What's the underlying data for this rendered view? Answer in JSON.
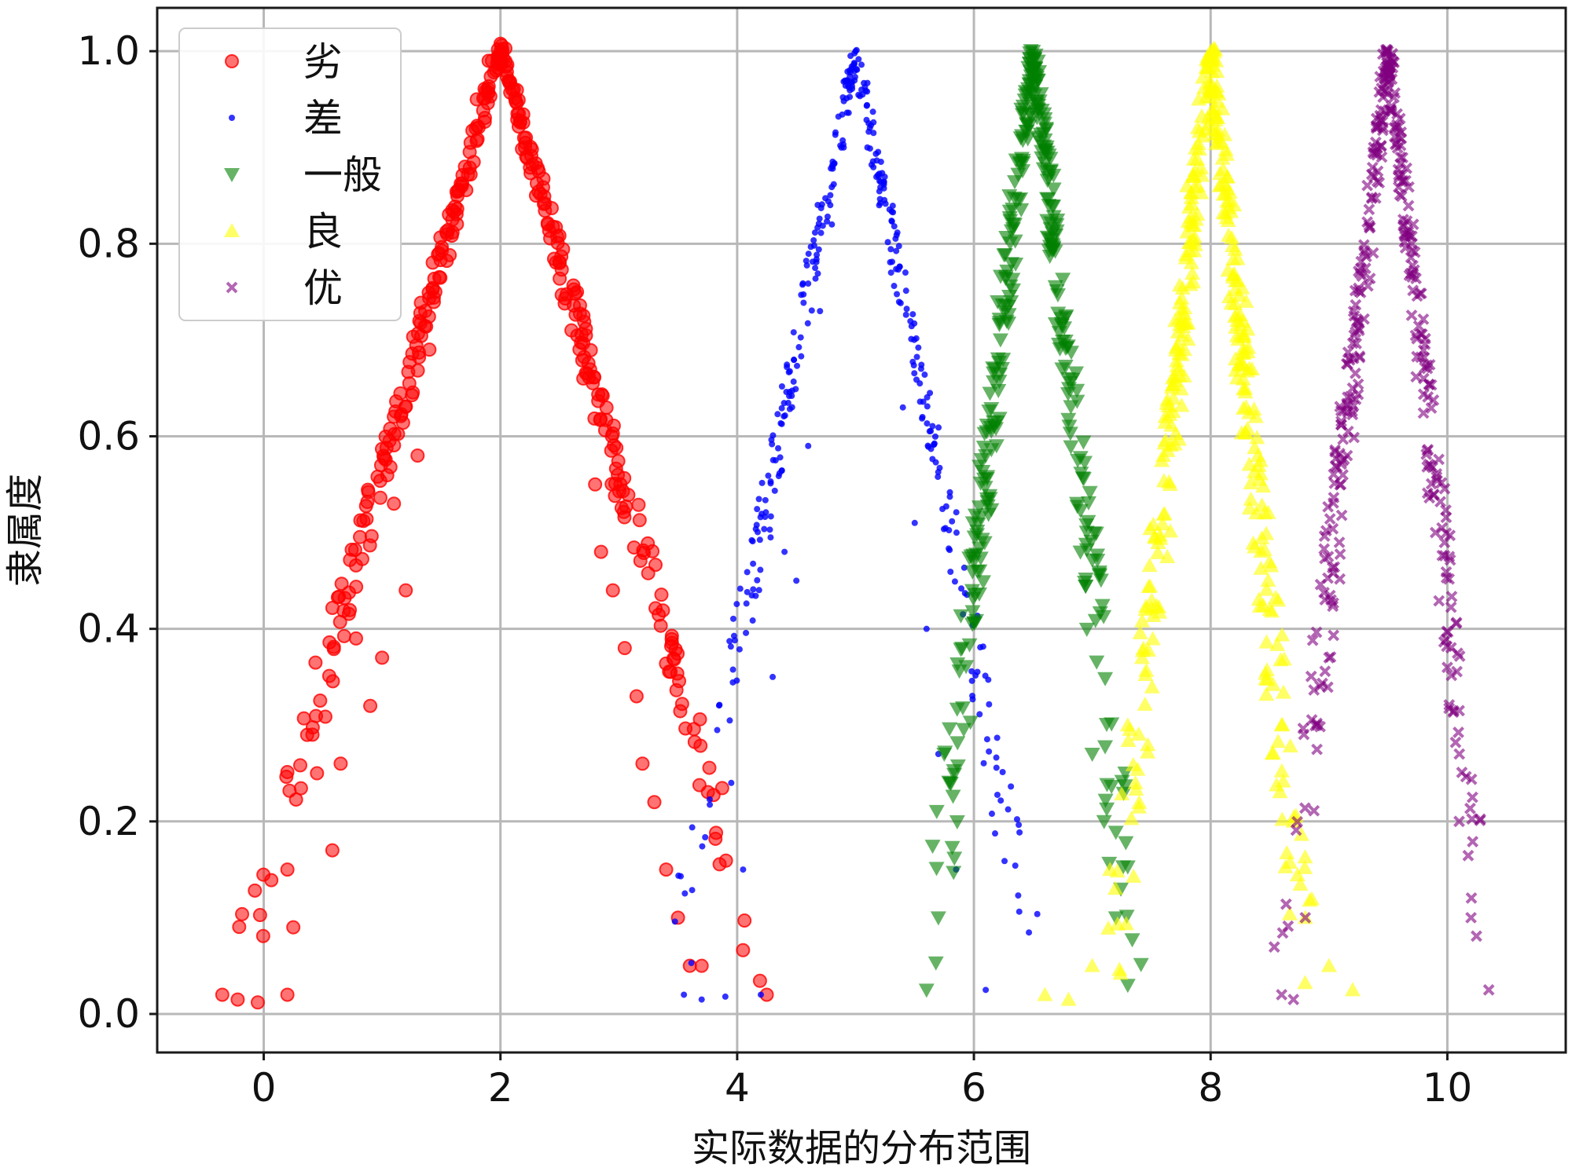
{
  "chart_data": {
    "type": "scatter",
    "title": "",
    "xlabel": "实际数据的分布范围",
    "ylabel": "隶属度",
    "xlim": [
      -0.9,
      11.0
    ],
    "ylim": [
      -0.04,
      1.045
    ],
    "xticks": [
      0,
      2,
      4,
      6,
      8,
      10
    ],
    "yticks": [
      0.0,
      0.2,
      0.4,
      0.6,
      0.8,
      1.0
    ],
    "xtick_labels": [
      "0",
      "2",
      "4",
      "6",
      "8",
      "10"
    ],
    "ytick_labels": [
      "0.0",
      "0.2",
      "0.4",
      "0.6",
      "0.8",
      "1.0"
    ],
    "grid": true,
    "legend_position": "top-left",
    "series": [
      {
        "name": "劣",
        "color": "#ff0000",
        "marker": "circle",
        "distribution": "triangular",
        "center": 2.0,
        "half_width": 2.3,
        "x": [
          -0.35,
          -0.22,
          -0.05,
          0.2,
          0.25,
          0.2,
          0.45,
          0.58,
          0.65,
          0.78,
          0.9,
          1.0,
          1.1,
          1.2,
          1.3,
          1.4,
          1.45,
          1.55,
          1.7,
          1.8,
          1.9,
          2.0,
          2.1,
          2.2,
          2.3,
          2.4,
          2.5,
          2.6,
          2.7,
          2.8,
          2.85,
          2.95,
          3.05,
          3.15,
          3.2,
          3.3,
          3.4,
          3.5,
          3.6,
          3.7,
          4.25
        ],
        "y": [
          0.02,
          0.015,
          0.012,
          0.02,
          0.09,
          0.15,
          0.25,
          0.17,
          0.26,
          0.39,
          0.32,
          0.37,
          0.53,
          0.44,
          0.58,
          0.69,
          0.75,
          0.81,
          0.88,
          0.95,
          0.99,
          1.0,
          0.96,
          0.91,
          0.85,
          0.82,
          0.78,
          0.71,
          0.66,
          0.55,
          0.48,
          0.44,
          0.38,
          0.33,
          0.26,
          0.22,
          0.15,
          0.1,
          0.05,
          0.05,
          0.02
        ]
      },
      {
        "name": "差",
        "color": "#0000ff",
        "marker": "point",
        "distribution": "triangular",
        "center": 5.0,
        "half_width": 1.6,
        "x": [
          3.55,
          3.7,
          3.9,
          3.95,
          4.05,
          4.2,
          4.3,
          4.4,
          4.5,
          4.6,
          4.7,
          4.8,
          4.9,
          4.95,
          5.0,
          5.05,
          5.1,
          5.2,
          5.3,
          5.4,
          5.5,
          5.6,
          5.7,
          5.85,
          6.1
        ],
        "y": [
          0.02,
          0.015,
          0.018,
          0.24,
          0.15,
          0.02,
          0.35,
          0.48,
          0.45,
          0.59,
          0.73,
          0.82,
          0.9,
          0.98,
          1.0,
          0.96,
          0.9,
          0.84,
          0.77,
          0.63,
          0.51,
          0.4,
          0.27,
          0.15,
          0.025
        ]
      },
      {
        "name": "一般",
        "color": "#008000",
        "marker": "triangle-down",
        "distribution": "triangular",
        "center": 6.5,
        "half_width": 0.9,
        "x": [
          5.6,
          5.7,
          5.8,
          5.9,
          6.0,
          6.1,
          6.2,
          6.3,
          6.4,
          6.5,
          6.6,
          6.7,
          6.8,
          6.9,
          7.0,
          7.1,
          7.2,
          7.3
        ],
        "y": [
          0.025,
          0.1,
          0.24,
          0.38,
          0.47,
          0.58,
          0.74,
          0.85,
          0.94,
          1.0,
          0.93,
          0.82,
          0.66,
          0.48,
          0.27,
          0.2,
          0.1,
          0.03
        ]
      },
      {
        "name": "良",
        "color": "#ffff00",
        "marker": "triangle-up",
        "distribution": "triangular",
        "center": 8.0,
        "half_width": 0.85,
        "x": [
          6.6,
          6.8,
          7.0,
          7.15,
          7.3,
          7.45,
          7.6,
          7.7,
          7.8,
          7.9,
          8.0,
          8.1,
          8.2,
          8.3,
          8.4,
          8.5,
          8.6,
          8.7,
          8.8,
          9.0,
          9.2
        ],
        "y": [
          0.02,
          0.015,
          0.05,
          0.15,
          0.3,
          0.42,
          0.58,
          0.72,
          0.86,
          0.95,
          1.0,
          0.94,
          0.84,
          0.74,
          0.58,
          0.42,
          0.3,
          0.2,
          0.1,
          0.05,
          0.025
        ]
      },
      {
        "name": "优",
        "color": "#800080",
        "marker": "x",
        "distribution": "triangular",
        "center": 9.5,
        "half_width": 0.9,
        "x": [
          8.6,
          8.7,
          8.8,
          8.9,
          9.0,
          9.1,
          9.2,
          9.3,
          9.4,
          9.5,
          9.6,
          9.7,
          9.8,
          9.9,
          10.0,
          10.1,
          10.2,
          10.35
        ],
        "y": [
          0.02,
          0.015,
          0.1,
          0.3,
          0.37,
          0.55,
          0.65,
          0.79,
          0.92,
          1.0,
          0.93,
          0.8,
          0.66,
          0.5,
          0.36,
          0.2,
          0.1,
          0.025
        ]
      }
    ]
  }
}
